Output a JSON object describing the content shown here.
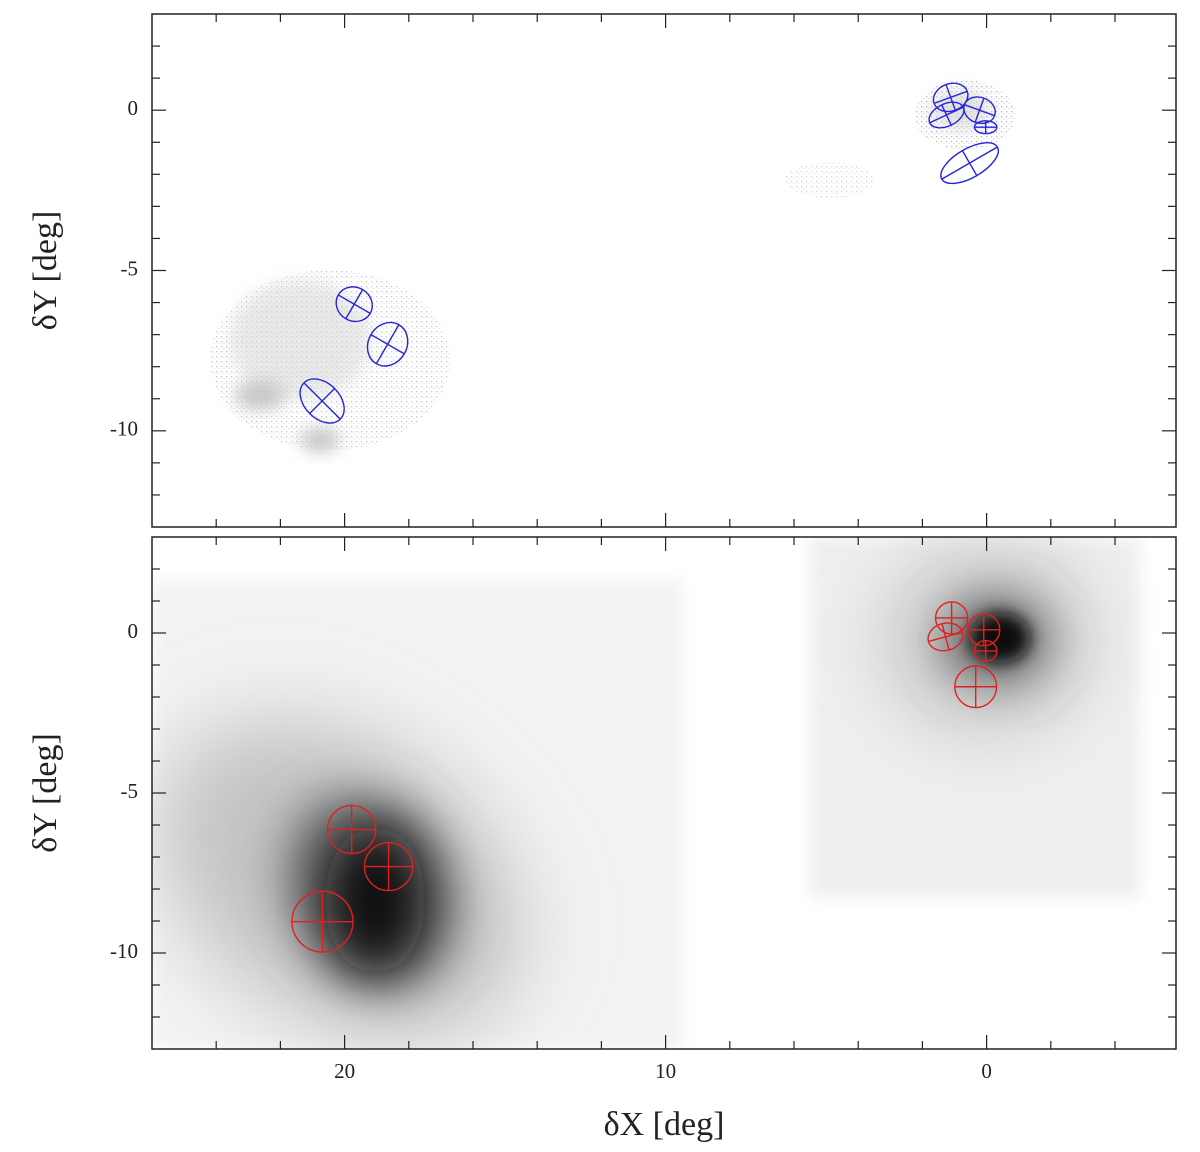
{
  "chart_data": [
    {
      "type": "ellipse-scatter",
      "ylabel": "δY [deg]",
      "xlim": [
        26,
        -5.9
      ],
      "ylim": [
        -13,
        3
      ],
      "yticks": [
        0,
        -5,
        -10
      ],
      "xminorticks": [
        24,
        22,
        20,
        18,
        16,
        14,
        12,
        10,
        8,
        6,
        4,
        2,
        0,
        -2,
        -4
      ],
      "yminorticks": [
        2,
        1,
        0,
        -1,
        -2,
        -3,
        -4,
        -5,
        -6,
        -7,
        -8,
        -9,
        -10,
        -11,
        -12
      ],
      "ellipses": {
        "color": "#2626d9",
        "x": [
          1.12,
          1.25,
          0.22,
          0.03,
          0.53,
          19.7,
          18.66,
          20.7
        ],
        "y": [
          0.4,
          -0.15,
          0,
          -0.53,
          -1.65,
          -6.05,
          -7.3,
          -9.07
        ],
        "width": [
          1.1,
          1.15,
          1.0,
          0.7,
          2.0,
          1.15,
          1.4,
          1.6
        ],
        "height": [
          0.85,
          0.7,
          0.8,
          0.4,
          0.9,
          1.05,
          1.2,
          1.1
        ],
        "angle": [
          20,
          25,
          -20,
          0,
          30,
          -30,
          60,
          -45
        ]
      }
    },
    {
      "type": "ellipse-scatter",
      "xlabel": "δX [deg]",
      "ylabel": "δY [deg]",
      "xlim": [
        26,
        -5.9
      ],
      "ylim": [
        -13,
        3
      ],
      "xticks": [
        20,
        10,
        0
      ],
      "yticks": [
        0,
        -5,
        -10
      ],
      "xminorticks": [
        24,
        22,
        20,
        18,
        16,
        14,
        12,
        10,
        8,
        6,
        4,
        2,
        0,
        -2,
        -4
      ],
      "yminorticks": [
        2,
        1,
        0,
        -1,
        -2,
        -3,
        -4,
        -5,
        -6,
        -7,
        -8,
        -9,
        -10,
        -11,
        -12
      ],
      "ellipses": {
        "color": "#e02020",
        "x": [
          1.09,
          1.28,
          0.09,
          0.03,
          0.34,
          19.78,
          18.63,
          20.69
        ],
        "y": [
          0.47,
          -0.12,
          0.1,
          -0.56,
          -1.68,
          -6.14,
          -7.3,
          -9.02
        ],
        "width": [
          1.0,
          1.1,
          1.0,
          0.7,
          1.3,
          1.5,
          1.5,
          1.9
        ],
        "height": [
          1.0,
          0.85,
          1.0,
          0.65,
          1.3,
          1.5,
          1.5,
          1.9
        ],
        "angle": [
          0,
          15,
          0,
          0,
          0,
          0,
          0,
          0
        ]
      }
    }
  ]
}
